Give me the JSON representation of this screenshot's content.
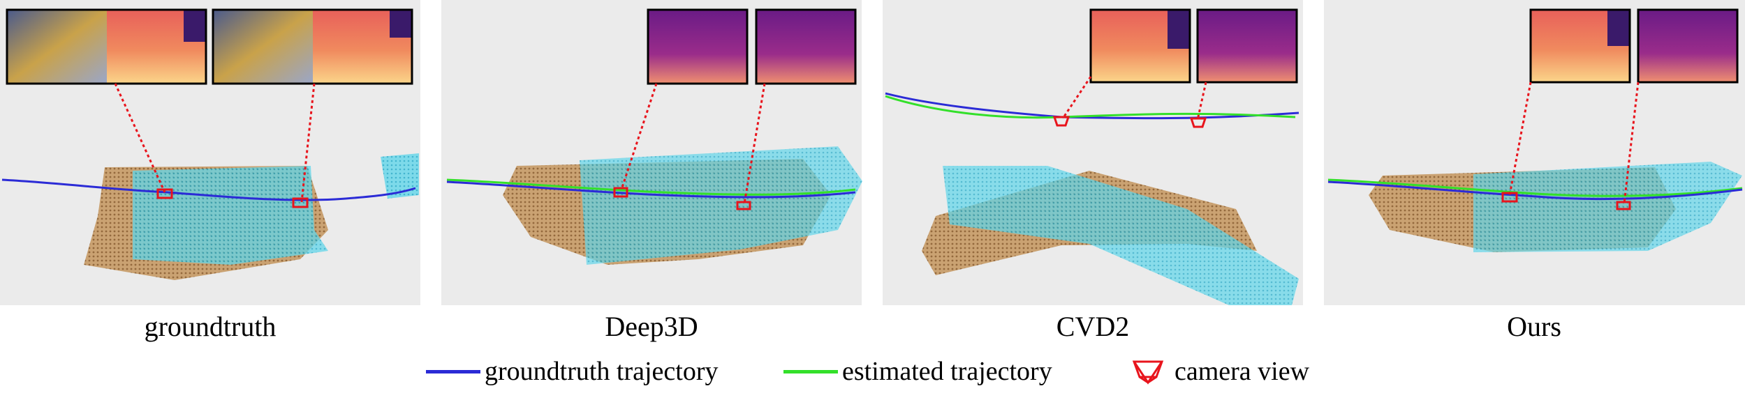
{
  "panels": [
    {
      "id": "groundtruth",
      "caption": "groundtruth"
    },
    {
      "id": "deep3d",
      "caption": "Deep3D"
    },
    {
      "id": "cvd2",
      "caption": "CVD2"
    },
    {
      "id": "ours",
      "caption": "Ours"
    }
  ],
  "legend": {
    "gt_label": "groundtruth trajectory",
    "est_label": "estimated trajectory",
    "cam_label": "camera view"
  },
  "colors": {
    "groundtruth_trajectory": "#2b2bd6",
    "estimated_trajectory": "#33e02a",
    "camera_view": "#e8141c",
    "panel_background": "#ebebeb",
    "point_cloud_brown": "#b08550",
    "point_cloud_cyan": "#3cc8e0"
  }
}
